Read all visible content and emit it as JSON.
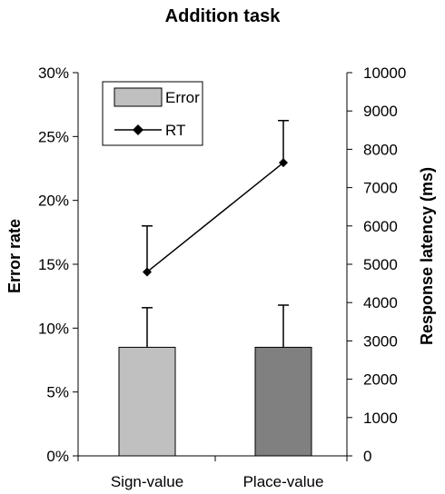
{
  "chart_data": {
    "type": "bar+line",
    "title": "Addition task",
    "categories": [
      "Sign-value",
      "Place-value"
    ],
    "y_left": {
      "label": "Error rate",
      "ticks": [
        "0%",
        "5%",
        "10%",
        "15%",
        "20%",
        "25%",
        "30%"
      ],
      "range": [
        0,
        30
      ],
      "unit": "%"
    },
    "y_right": {
      "label": "Response latency (ms)",
      "ticks": [
        "0",
        "1000",
        "2000",
        "3000",
        "4000",
        "5000",
        "6000",
        "7000",
        "8000",
        "9000",
        "10000"
      ],
      "range": [
        0,
        10000
      ]
    },
    "series": [
      {
        "name": "Error",
        "kind": "bar",
        "axis": "left",
        "values": [
          8.5,
          8.5
        ],
        "error_plus": [
          3.1,
          3.3
        ],
        "colors": [
          "#c0c0c0",
          "#808080"
        ]
      },
      {
        "name": "RT",
        "kind": "line",
        "axis": "right",
        "values": [
          4800,
          7650
        ],
        "error_plus": [
          1200,
          1100
        ],
        "color": "#000000",
        "marker": "diamond"
      }
    ],
    "legend": {
      "placement": "top-left",
      "entries": [
        "Error",
        "RT"
      ]
    },
    "grid": false
  }
}
